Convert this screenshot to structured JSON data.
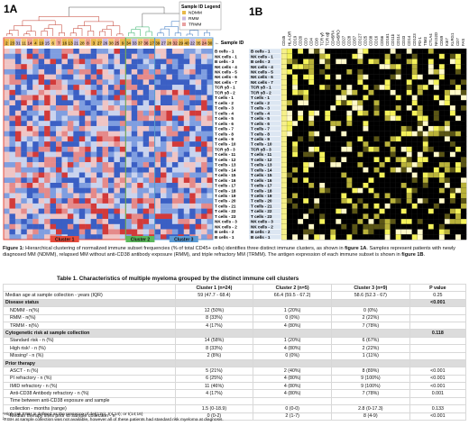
{
  "panel_a": {
    "label": "1A",
    "sample_id_label": "← Sample ID",
    "legend": {
      "title": "Sample ID Legend",
      "items": [
        {
          "label": "NDMM",
          "color": "#e8b84a"
        },
        {
          "label": "RMM",
          "color": "#c8b8e0"
        },
        {
          "label": "TRMM",
          "color": "#e8a0a0"
        }
      ]
    },
    "sample_ids": [
      "2",
      "23",
      "31",
      "11",
      "14",
      "4",
      "19",
      "15",
      "6",
      "7",
      "16",
      "13",
      "21",
      "28",
      "8",
      "3",
      "27",
      "26",
      "38",
      "25",
      "9",
      "34",
      "33",
      "37",
      "36",
      "17",
      "39",
      "27",
      "28",
      "32",
      "29",
      "40",
      "22",
      "35",
      "24",
      "30"
    ],
    "clusters": [
      {
        "label": "Cluster 1",
        "color": "#e74c3c"
      },
      {
        "label": "Cluster 2",
        "color": "#5cb85c"
      },
      {
        "label": "Cluster 3",
        "color": "#5b9bd5"
      }
    ]
  },
  "panel_b": {
    "label": "1B",
    "markers": [
      "CD45",
      "HLA-DR",
      "CD19",
      "CD20",
      "CD3",
      "CD4",
      "CD8",
      "TCR γδ",
      "TCR αβ",
      "CD45RA",
      "CD45RO",
      "CD27",
      "CD28",
      "CD57",
      "CD127",
      "CD25",
      "CD38",
      "CD16",
      "CD56",
      "CD161",
      "CD11b",
      "CD11c",
      "CD33",
      "CD14",
      "CD123",
      "PD-1",
      "TIM3",
      "CTLA4",
      "NKG2D",
      "CD69",
      "Ki67",
      "KLRG1",
      "CD7",
      "FAS"
    ]
  },
  "row_labels": [
    "B cells - 1",
    "NK cells - 1",
    "B cells - 3",
    "NK cells - 4",
    "NK cells - 5",
    "NK cells - 6",
    "NK cells - 7",
    "TCR γδ - 1",
    "TCR γδ - 2",
    "T cells - 1",
    "T cells - 2",
    "T cells - 3",
    "T cells - 4",
    "T cells - 5",
    "T cells - 6",
    "T cells - 7",
    "T cells - 8",
    "T cells - 9",
    "T cells - 10",
    "TCR γδ - 3",
    "T cells - 11",
    "T cells - 12",
    "T cells - 13",
    "T cells - 14",
    "T cells - 15",
    "T cells - 16",
    "T cells - 17",
    "T cells - 18",
    "T cells - 19",
    "T cells - 20",
    "T cells - 21",
    "T cells - 22",
    "T cells - 23",
    "NK cells - 3",
    "NK cells - 2",
    "B cells - 2",
    "B cells - 1"
  ],
  "caption": {
    "figure_label": "Figure 1:",
    "text_1": " Hierarchical clustering of normalized immune subset frequencies (% of total CD45+ cells) identifies three distinct immune clusters, as shown in ",
    "ref_1": "figure 1A",
    "text_2": ". Samples represent patients with newly diagnosed MM (NDMM), relapsed MM without anti-CD38 antibody exposure (RMM), and triple refractory MM (TRMM). The antigen expression of each immune subset is shown in ",
    "ref_2": "figure 1B",
    "text_3": "."
  },
  "table": {
    "title": "Table 1. Characteristics of multiple myeloma grouped by the distinct immune cell clusters",
    "headers": [
      "",
      "Cluster 1 (n=24)",
      "Cluster 2 (n=5)",
      "Cluster 3 (n=9)",
      "P value"
    ],
    "rows": [
      {
        "type": "row",
        "label": "Median age at sample collection - years (IQR)",
        "c1": "59 (47.7 - 68.4)",
        "c2": "66.4 (59.5 - 67.2)",
        "c3": "58.6 (52.3 - 67)",
        "p": "0.25"
      },
      {
        "type": "section",
        "label": "Disease status",
        "c1": "",
        "c2": "",
        "c3": "",
        "p": "<0.001"
      },
      {
        "type": "indent",
        "label": "NDMM - n(%)",
        "c1": "12 (50%)",
        "c2": "1 (20%)",
        "c3": "0 (0%)",
        "p": ""
      },
      {
        "type": "indent",
        "label": "RMM - n(%)",
        "c1": "8 (33%)",
        "c2": "0 (0%)",
        "c3": "2 (22%)",
        "p": ""
      },
      {
        "type": "indent",
        "label": "TRMM - n(%)",
        "c1": "4 (17%)",
        "c2": "4 (80%)",
        "c3": "7 (78%)",
        "p": ""
      },
      {
        "type": "section",
        "label": "Cytogenetic risk at sample collection",
        "c1": "",
        "c2": "",
        "c3": "",
        "p": "0.118"
      },
      {
        "type": "indent",
        "label": "Standard risk - n (%)",
        "c1": "14 (58%)",
        "c2": "1 (20%)",
        "c3": "6 (67%)",
        "p": ""
      },
      {
        "type": "indent",
        "label": "High risk¹ - n (%)",
        "c1": "8 (33%)",
        "c2": "4 (80%)",
        "c3": "2 (22%)",
        "p": ""
      },
      {
        "type": "indent",
        "label": "Missing² - n (%)",
        "c1": "2 (8%)",
        "c2": "0 (0%)",
        "c3": "1 (11%)",
        "p": ""
      },
      {
        "type": "section",
        "label": "Prior therapy",
        "c1": "",
        "c2": "",
        "c3": "",
        "p": ""
      },
      {
        "type": "indent",
        "label": "ASCT - n (%)",
        "c1": "5 (21%)",
        "c2": "2 (40%)",
        "c3": "8 (89%)",
        "p": "<0.001"
      },
      {
        "type": "indent",
        "label": "PI refractory - n (%)",
        "c1": "6 (25%)",
        "c2": "4 (80%)",
        "c3": "9 (100%)",
        "p": "<0.001"
      },
      {
        "type": "indent",
        "label": "IMID refractory - n (%)",
        "c1": "11 (46%)",
        "c2": "4 (80%)",
        "c3": "9 (100%)",
        "p": "<0.001"
      },
      {
        "type": "indent",
        "label": "Anti-CD38 Antibody refractory - n (%)",
        "c1": "4 (17%)",
        "c2": "4 (80%)",
        "c3": "7 (78%)",
        "p": "0.001"
      },
      {
        "type": "indent",
        "label": "Time between anti-CD38 exposure and sample",
        "c1": "",
        "c2": "",
        "c3": "",
        "p": ""
      },
      {
        "type": "indent",
        "label": "collection - months (range)",
        "c1": "1.5 (0-18.9)",
        "c2": "0 (0-0)",
        "c3": "2.8 (0-17.3)",
        "p": "0.133"
      },
      {
        "type": "indent",
        "label": "Median therapy lines prior to sample collection - n",
        "c1": "0 (0-2)",
        "c2": "2 (1-7)",
        "c3": "8 (4-9)",
        "p": "<0.001"
      }
    ]
  },
  "footnotes": {
    "note_1": "¹High risk FISH is defined as the presence of del(17p), t(4;14); or t(14;16)",
    "note_2": "²FISH at sample collection was not available, however all of these patients had standard risk myeloma at diagnosis."
  }
}
